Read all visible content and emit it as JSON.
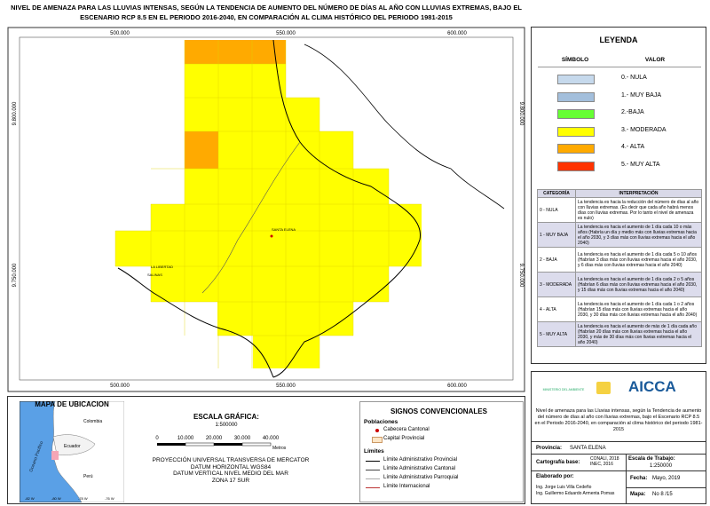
{
  "title": "NIVEL DE AMENAZA PARA LAS LLUVIAS INTENSAS, SEGÚN LA TENDENCIA DE AUMENTO DEL NÚMERO DE DÍAS AL AÑO CON LLUVIAS EXTREMAS, BAJO EL ESCENARIO RCP 8.5 EN EL PERIODO 2016-2040, EN COMPARACIÓN AL CLIMA HISTÓRICO DEL PERIODO 1981-2015",
  "map": {
    "x_coords": [
      "500.000",
      "550.000",
      "600.000"
    ],
    "y_coords": [
      "9.800.000",
      "9.750.000"
    ],
    "places": [
      "SANTA ELENA",
      "LA LIBERTAD",
      "SALINAS"
    ]
  },
  "legend": {
    "title": "LEYENDA",
    "headers": [
      "SÍMBOLO",
      "VALOR"
    ],
    "items": [
      {
        "label": "0.- NULA",
        "color": "#c6d9ec"
      },
      {
        "label": "1.- MUY BAJA",
        "color": "#a3bfdc"
      },
      {
        "label": "2.-BAJA",
        "color": "#66ff33"
      },
      {
        "label": "3.- MODERADA",
        "color": "#ffff00"
      },
      {
        "label": "4.- ALTA",
        "color": "#ffaa00"
      },
      {
        "label": "5.- MUY ALTA",
        "color": "#ff3300"
      }
    ]
  },
  "interpretation": {
    "headers": [
      "CATEGORÍA",
      "INTERPRETACIÓN"
    ],
    "rows": [
      [
        "0 - NULA",
        "La tendencia es hacia la reducción del número de días al año con lluvias extremas. (Es decir que cada año habrá menos días con lluvias extremas. Por lo tanto el nivel de amenaza es nulo)"
      ],
      [
        "1 - MUY BAJA",
        "La tendencia es hacia el aumento de 1 día cada 10 o más años (Habría un día y medio más con lluvias extremas hacia el año 2030, y 3 días más con lluvias extremas hacia el año 2040)"
      ],
      [
        "2 - BAJA",
        "La tendencia es hacia el aumento de 1 día cada 5 o 10 años (Habrían 3 días más con lluvias extremas hacia el año 2030, y 6 días más con lluvias extremas hacia el año 2040)"
      ],
      [
        "3 - MODERADA",
        "La tendencia es hacia el aumento de 1 día cada 2 o 5 años (Habrían 6 días más con lluvias extremas hacia el año 2030, y 15 días más con lluvias extremas hacia el año 2040)"
      ],
      [
        "4 - ALTA",
        "La tendencia es hacia el aumento de 1 día cada 1 o 2 años (Habrían 15 días más con lluvias extremas hacia el año 2030, y 30 días más con lluvias extremas hacia el año 2040)"
      ],
      [
        "5 - MUY ALTA",
        "La tendencia es hacia el aumento de más de 1 día cada año (Habrían 20 días más con lluvias extremas hacia el año 2030, y más de 30 días más con lluvias extremas hacia el año 2040)"
      ]
    ]
  },
  "location_map": {
    "title": "MAPA DE UBICACIÓN",
    "countries": [
      "Colombia",
      "Ecuador",
      "Perú"
    ],
    "ocean": "Oceano Pacifico",
    "lon_labels": [
      "-82 W",
      "-80 W",
      "-78 W",
      "-76 W"
    ]
  },
  "scale": {
    "title": "ESCALA GRÁFICA:",
    "ratio": "1:500000",
    "ticks": [
      "0",
      "10.000",
      "20.000",
      "30.000",
      "40.000"
    ],
    "unit": "Metros"
  },
  "projection": [
    "PROYECCIÓN UNIVERSAL TRANSVERSA DE MERCATOR",
    "DATUM HORIZONTAL WGS84",
    "DATUM VERTICAL NIVEL MEDIO DEL MAR",
    "ZONA 17 SUR"
  ],
  "signs": {
    "title": "SIGNOS CONVENCIONALES",
    "populations_title": "Poblaciones",
    "populations": [
      "Cabecera Cantonal",
      "Capital Provincial"
    ],
    "limits_title": "Límites",
    "limits": [
      "Límite Administrativo Provincial",
      "Límite Administrativo Cantonal",
      "Límite Administrativo Parroquial",
      "Límite Internacional"
    ]
  },
  "logos": {
    "ministry": "MINISTERIO DEL AMBIENTE",
    "project": "AICCA"
  },
  "description": "Nivel de amenaza para las Lluvias intensas, según la Tendencia de aumento del número de días al año con lluvias extremas, bajo el Escenario RCP 8.5 en el Periodo 2016-2040, en comparación al clima histórico del periodo 1981-2015",
  "info": {
    "provincia_label": "Provincia:",
    "provincia": "SANTA ELENA",
    "cartografia_label": "Cartografía base:",
    "cartografia": "CONALI, 2018 INEC, 2016",
    "escala_label": "Escala de Trabajo:",
    "escala": "1:250000",
    "fecha_label": "Fecha:",
    "fecha": "Mayo, 2019",
    "elaborado_label": "Elaborado por:",
    "elaborado": [
      "Ing. Jorge Luis Villa Cedeño",
      "Ing. Guillermo Eduardo Armenta Pomas"
    ],
    "mapa_label": "Mapa:",
    "mapa": "No 8 /15"
  }
}
